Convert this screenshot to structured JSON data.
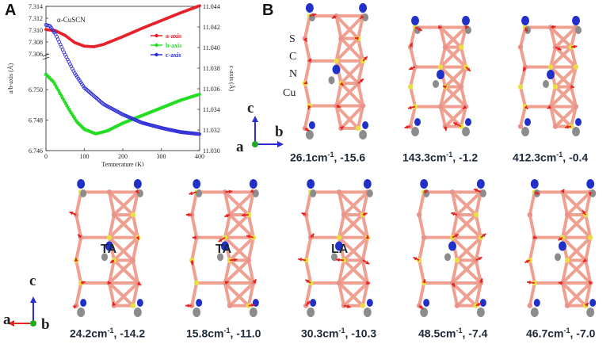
{
  "panels": {
    "a_letter": "A",
    "b_letter": "B"
  },
  "chart_data": {
    "type": "scatter",
    "title": "α-CuSCN",
    "xlabel": "Temperature (K)",
    "ylabel_left": "a/b-axis (Å)",
    "ylabel_right": "c-axis (Å)",
    "xlim": [
      0,
      400
    ],
    "x_ticks": [
      "0",
      "100",
      "200",
      "300",
      "400"
    ],
    "y_top_ticks": [
      "7.314",
      "7.312",
      "7.310",
      "7.308",
      "7.306"
    ],
    "y_bottom_ticks": [
      "6.750",
      "6.748",
      "6.746"
    ],
    "y_right_ticks": [
      "11.044",
      "11.042",
      "11.040",
      "11.038",
      "11.036",
      "11.034",
      "11.032",
      "11.030"
    ],
    "legend_position": "right",
    "series": [
      {
        "name": "a-axis",
        "color": "#e8202a",
        "axis": "left-top",
        "x": [
          0,
          25,
          50,
          75,
          100,
          125,
          150,
          200,
          250,
          300,
          350,
          400
        ],
        "y": [
          7.3101,
          7.3099,
          7.3091,
          7.3079,
          7.3073,
          7.3072,
          7.3076,
          7.3089,
          7.3103,
          7.3116,
          7.3129,
          7.3141
        ]
      },
      {
        "name": "b-axis",
        "color": "#22dd22",
        "axis": "left-bottom",
        "x": [
          0,
          20,
          40,
          60,
          80,
          100,
          130,
          160,
          200,
          250,
          300,
          350,
          400
        ],
        "y": [
          6.751,
          6.7505,
          6.7496,
          6.7487,
          6.7479,
          6.7474,
          6.7471,
          6.7473,
          6.7478,
          6.7483,
          6.7488,
          6.7493,
          6.7497
        ]
      },
      {
        "name": "c-axis",
        "color": "#2b2bd8",
        "axis": "right",
        "x": [
          0,
          10,
          25,
          50,
          75,
          100,
          150,
          200,
          250,
          300,
          350,
          400
        ],
        "y": [
          11.0422,
          11.0421,
          11.0413,
          11.0393,
          11.0375,
          11.0361,
          11.0345,
          11.0335,
          11.0327,
          11.0322,
          11.0318,
          11.0316
        ]
      }
    ]
  },
  "structure_b": {
    "atom_labels": [
      "S",
      "C",
      "N",
      "Cu"
    ],
    "axes_top": {
      "c": "c",
      "a": "a",
      "b": "b"
    },
    "axes_bottom": {
      "c": "c",
      "a": "a",
      "b": "b"
    },
    "branch_labels": [
      "TA",
      "TA",
      "LA"
    ],
    "top_modes": [
      "26.1cm",
      "143.3cm",
      "412.3cm"
    ],
    "top_gamma": [
      "-15.6",
      "-1.2",
      "-0.4"
    ],
    "bottom_modes": [
      "24.2cm",
      "15.8cm",
      "30.3cm",
      "48.5cm",
      "46.7cm"
    ],
    "bottom_gamma": [
      "-14.2",
      "-11.0",
      "-10.3",
      "-7.4",
      "-7.0"
    ],
    "unit_sup": "-1",
    "colors": {
      "cu": "#e8938a",
      "s": "#e8e040",
      "c": "#8c8c8c",
      "n": "#2030c8",
      "arrow": "#e82020",
      "bond": "#f0a090"
    }
  }
}
